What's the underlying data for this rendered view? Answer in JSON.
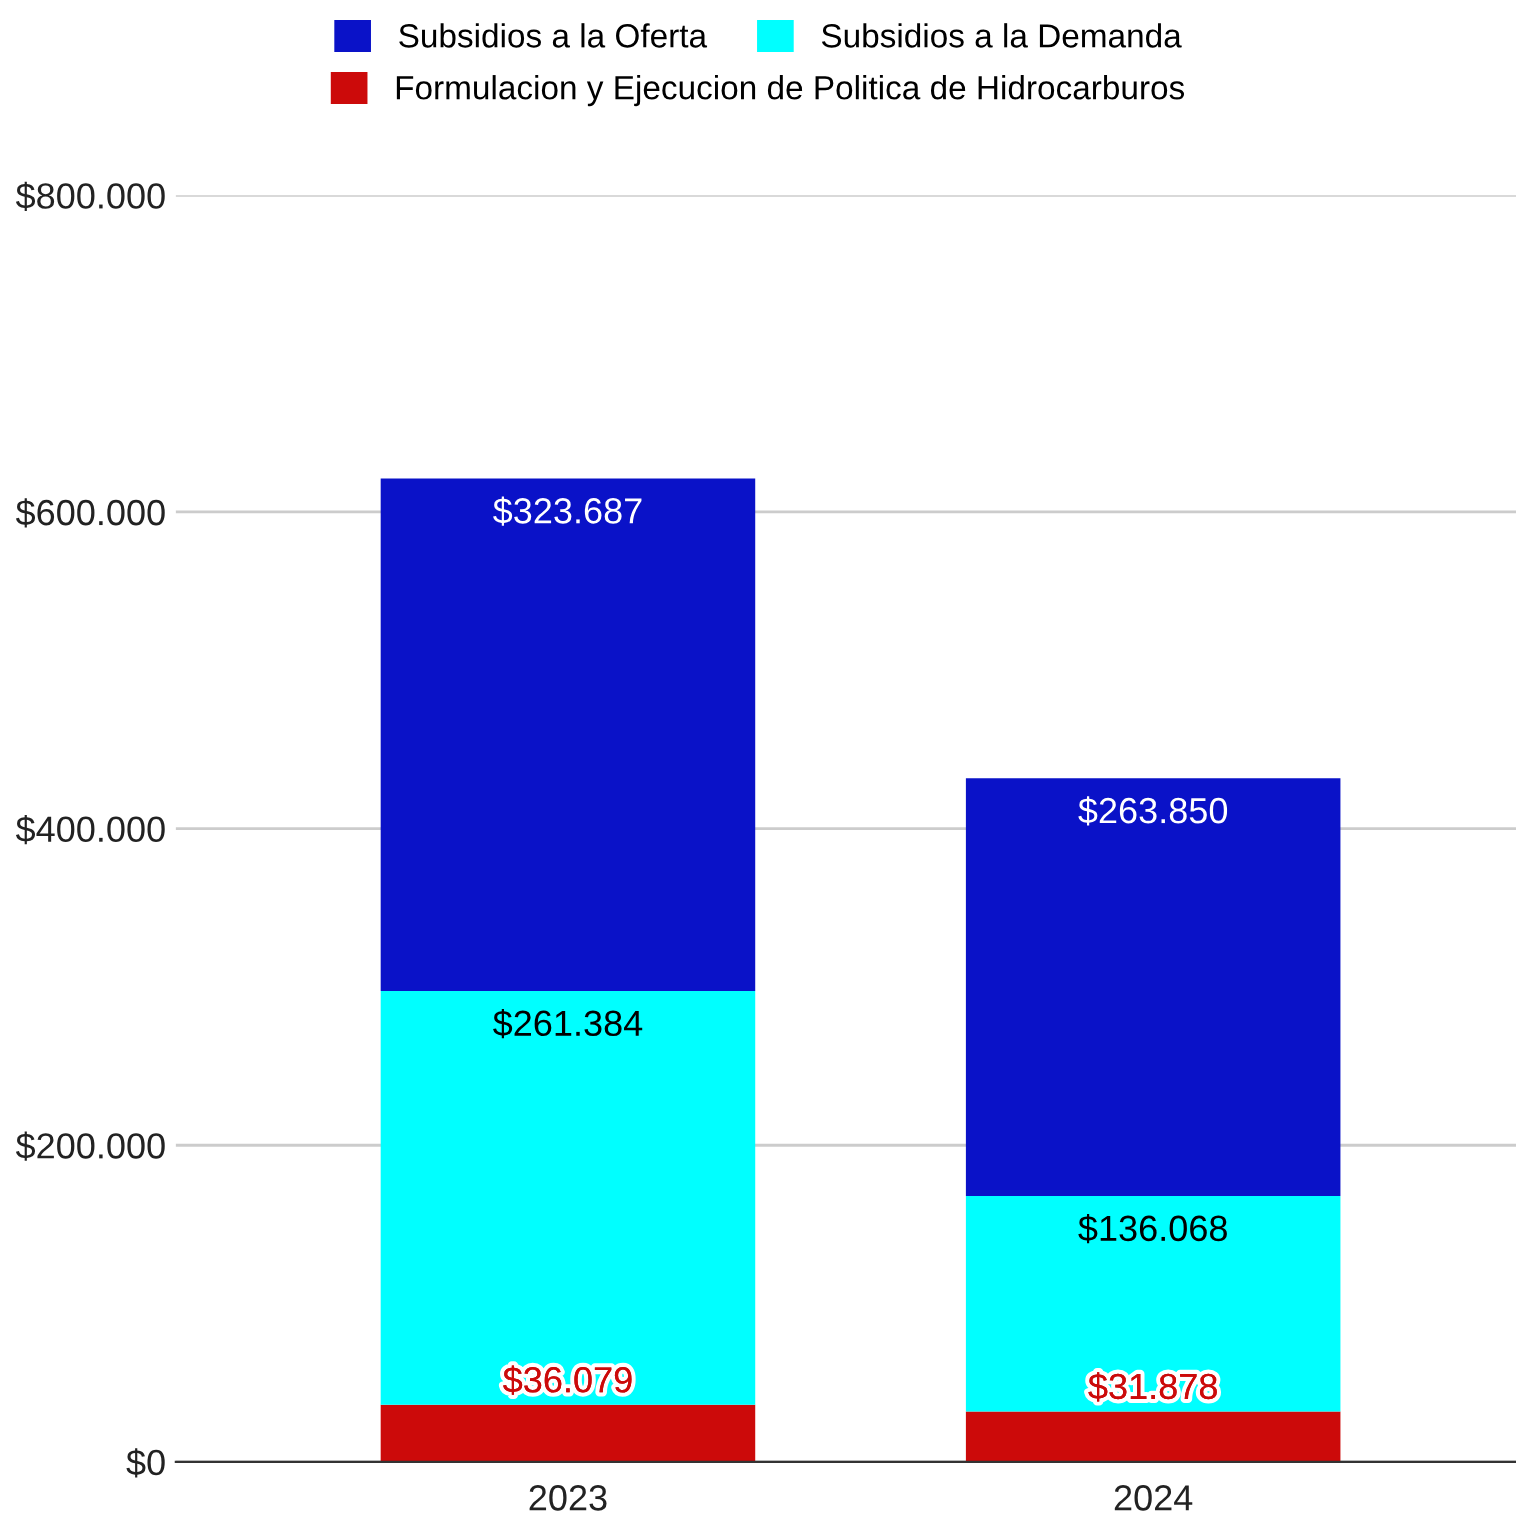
{
  "chart_data": {
    "type": "bar",
    "stacked": true,
    "categories": [
      "2023",
      "2024"
    ],
    "series": [
      {
        "name": "Formulacion y Ejecucion de Politica de Hidrocarburos",
        "color": "#cc0a0a",
        "values": [
          36079,
          31878
        ],
        "value_labels": [
          "$36.079",
          "$31.878"
        ]
      },
      {
        "name": "Subsidios a la Demanda",
        "color": "#00ffff",
        "values": [
          261384,
          136068
        ],
        "value_labels": [
          "$261.384",
          "$136.068"
        ]
      },
      {
        "name": "Subsidios a la Oferta",
        "color": "#0a12c8",
        "values": [
          323687,
          263850
        ],
        "value_labels": [
          "$323.687",
          "$263.850"
        ]
      }
    ],
    "ylim": [
      0,
      800000
    ],
    "yticks": [
      {
        "value": 0,
        "label": "$0"
      },
      {
        "value": 200000,
        "label": "$200.000"
      },
      {
        "value": 400000,
        "label": "$400.000"
      },
      {
        "value": 600000,
        "label": "$600.000"
      },
      {
        "value": 800000,
        "label": "$800.000"
      }
    ],
    "grid": "y",
    "legend": "top"
  }
}
